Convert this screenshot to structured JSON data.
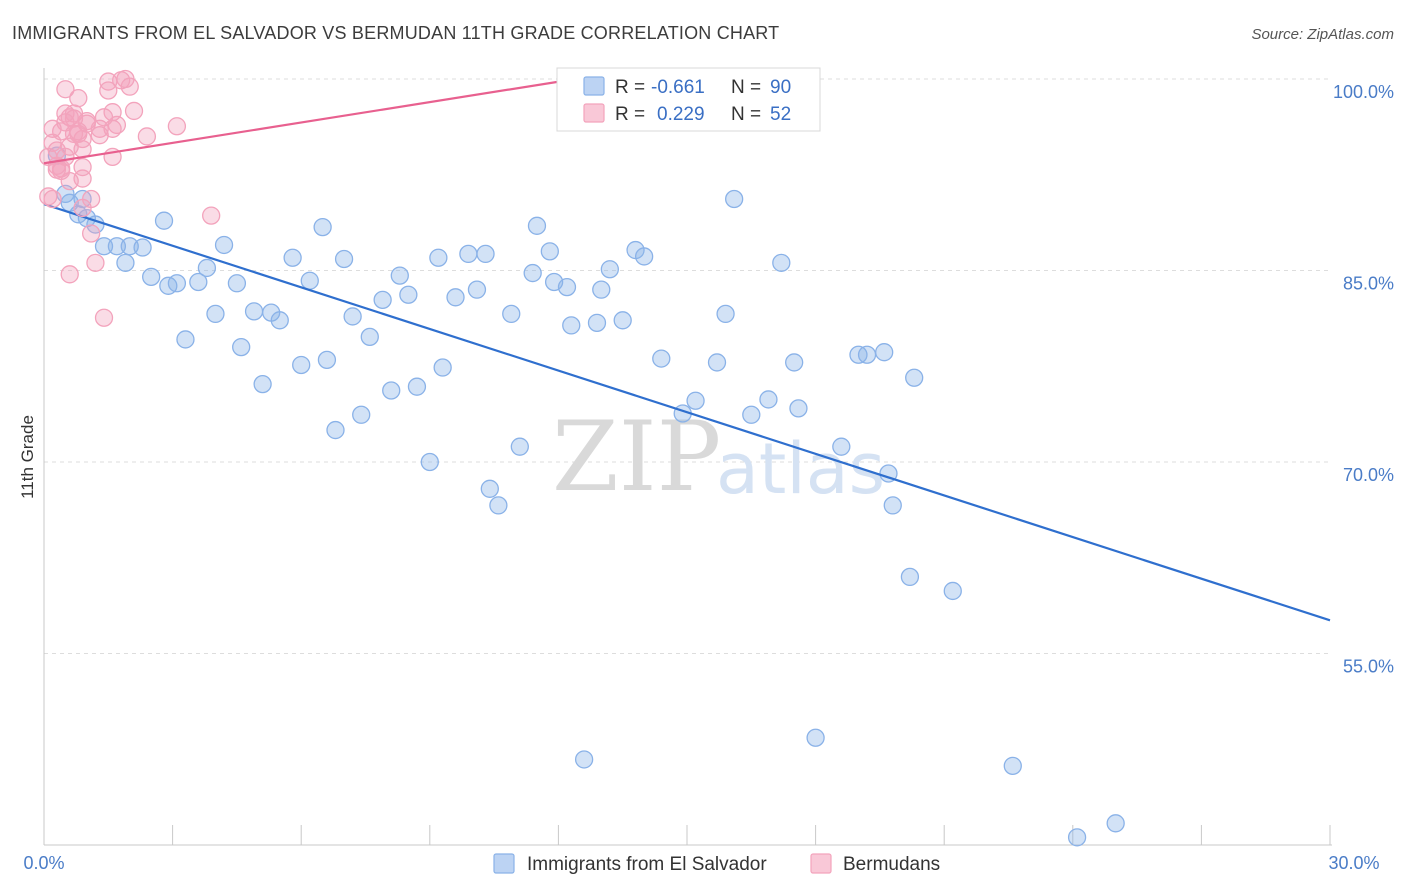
{
  "chart_data": {
    "type": "scatter",
    "title": "IMMIGRANTS FROM EL SALVADOR VS BERMUDAN 11TH GRADE CORRELATION CHART",
    "source": "Source: ZipAtlas.com",
    "ylabel": "11th Grade",
    "xlim": [
      0,
      30
    ],
    "ylim": [
      40,
      100
    ],
    "x_tick_labels": [
      "0.0%",
      "30.0%"
    ],
    "y_ticks": [
      100,
      85,
      70,
      55
    ],
    "y_tick_labels": [
      "100.0%",
      "85.0%",
      "70.0%",
      "55.0%"
    ],
    "watermark": {
      "zip": "ZIP",
      "atlas": "atlas"
    },
    "legend": {
      "rows": [
        {
          "r_label": "R =",
          "r_value": "-0.661",
          "n_label": "N =",
          "n_value": "90"
        },
        {
          "r_label": "R =",
          "r_value": "0.229",
          "n_label": "N =",
          "n_value": "52"
        }
      ]
    },
    "series": [
      {
        "name": "Immigrants from El Salvador",
        "color": "#8ab2e8",
        "line_color": "#2f6fce",
        "trend": {
          "x0": 0.0,
          "y0": 90.2,
          "x1": 30.0,
          "y1": 57.6
        },
        "points": [
          [
            0.5,
            91.0
          ],
          [
            0.6,
            90.3
          ],
          [
            0.8,
            89.4
          ],
          [
            1.0,
            89.1
          ],
          [
            1.2,
            88.6
          ],
          [
            1.4,
            86.9
          ],
          [
            1.7,
            86.9
          ],
          [
            1.9,
            85.6
          ],
          [
            2.0,
            86.9
          ],
          [
            2.3,
            86.8
          ],
          [
            2.5,
            84.5
          ],
          [
            2.8,
            88.9
          ],
          [
            2.9,
            83.8
          ],
          [
            3.1,
            84.0
          ],
          [
            3.3,
            79.6
          ],
          [
            3.6,
            84.1
          ],
          [
            3.8,
            85.2
          ],
          [
            4.0,
            81.6
          ],
          [
            4.2,
            87.0
          ],
          [
            4.5,
            84.0
          ],
          [
            4.6,
            79.0
          ],
          [
            4.9,
            81.8
          ],
          [
            5.1,
            76.1
          ],
          [
            5.3,
            81.7
          ],
          [
            5.5,
            81.1
          ],
          [
            5.8,
            86.0
          ],
          [
            6.0,
            77.6
          ],
          [
            6.2,
            84.2
          ],
          [
            6.5,
            88.4
          ],
          [
            6.6,
            78.0
          ],
          [
            6.8,
            72.5
          ],
          [
            7.0,
            85.9
          ],
          [
            7.2,
            81.4
          ],
          [
            7.4,
            73.7
          ],
          [
            7.6,
            79.8
          ],
          [
            7.9,
            82.7
          ],
          [
            8.1,
            75.6
          ],
          [
            8.3,
            84.6
          ],
          [
            8.5,
            83.1
          ],
          [
            8.7,
            75.9
          ],
          [
            9.0,
            70.0
          ],
          [
            9.2,
            86.0
          ],
          [
            9.3,
            77.4
          ],
          [
            9.6,
            82.9
          ],
          [
            9.9,
            86.3
          ],
          [
            10.1,
            83.5
          ],
          [
            10.3,
            86.3
          ],
          [
            10.4,
            67.9
          ],
          [
            10.6,
            66.6
          ],
          [
            10.9,
            81.6
          ],
          [
            11.1,
            71.2
          ],
          [
            11.4,
            84.8
          ],
          [
            11.5,
            88.5
          ],
          [
            11.8,
            86.5
          ],
          [
            11.9,
            84.1
          ],
          [
            12.2,
            83.7
          ],
          [
            12.3,
            80.7
          ],
          [
            12.6,
            46.7
          ],
          [
            12.9,
            80.9
          ],
          [
            13.0,
            83.5
          ],
          [
            13.2,
            85.1
          ],
          [
            13.5,
            81.1
          ],
          [
            13.8,
            86.6
          ],
          [
            14.0,
            86.1
          ],
          [
            14.4,
            78.1
          ],
          [
            14.9,
            73.8
          ],
          [
            15.2,
            74.8
          ],
          [
            15.7,
            77.8
          ],
          [
            15.9,
            81.6
          ],
          [
            16.1,
            90.6
          ],
          [
            16.5,
            73.7
          ],
          [
            16.9,
            74.9
          ],
          [
            17.2,
            85.6
          ],
          [
            17.5,
            77.8
          ],
          [
            17.6,
            74.2
          ],
          [
            18.0,
            48.4
          ],
          [
            18.6,
            71.2
          ],
          [
            19.0,
            78.4
          ],
          [
            19.2,
            78.4
          ],
          [
            19.6,
            78.6
          ],
          [
            19.7,
            69.1
          ],
          [
            19.8,
            66.6
          ],
          [
            20.2,
            61.0
          ],
          [
            20.3,
            76.6
          ],
          [
            21.2,
            59.9
          ],
          [
            22.6,
            46.2
          ],
          [
            24.1,
            40.6
          ],
          [
            25.0,
            41.7
          ],
          [
            0.3,
            94.0
          ],
          [
            0.9,
            90.6
          ]
        ]
      },
      {
        "name": "Bermudans",
        "color": "#f3a3bc",
        "line_color": "#e8608f",
        "trend": {
          "x0": 0.0,
          "y0": 93.4,
          "x1": 12.4,
          "y1": 100.0
        },
        "points": [
          [
            0.1,
            93.9
          ],
          [
            0.1,
            90.8
          ],
          [
            0.2,
            90.6
          ],
          [
            0.2,
            95.0
          ],
          [
            0.2,
            96.1
          ],
          [
            0.3,
            92.9
          ],
          [
            0.3,
            94.4
          ],
          [
            0.3,
            93.2
          ],
          [
            0.4,
            92.8
          ],
          [
            0.4,
            93.0
          ],
          [
            0.4,
            95.9
          ],
          [
            0.5,
            96.6
          ],
          [
            0.5,
            93.9
          ],
          [
            0.5,
            97.3
          ],
          [
            0.5,
            99.2
          ],
          [
            0.6,
            97.0
          ],
          [
            0.6,
            94.7
          ],
          [
            0.6,
            92.0
          ],
          [
            0.6,
            84.7
          ],
          [
            0.7,
            96.9
          ],
          [
            0.7,
            97.3
          ],
          [
            0.7,
            95.7
          ],
          [
            0.8,
            95.9
          ],
          [
            0.8,
            98.5
          ],
          [
            0.8,
            95.7
          ],
          [
            0.9,
            95.3
          ],
          [
            0.9,
            93.1
          ],
          [
            0.9,
            94.5
          ],
          [
            0.9,
            89.9
          ],
          [
            0.9,
            92.2
          ],
          [
            1.0,
            96.7
          ],
          [
            1.0,
            96.5
          ],
          [
            1.1,
            87.9
          ],
          [
            1.1,
            90.6
          ],
          [
            1.2,
            85.6
          ],
          [
            1.3,
            95.6
          ],
          [
            1.3,
            96.1
          ],
          [
            1.4,
            97.0
          ],
          [
            1.4,
            81.3
          ],
          [
            1.5,
            99.1
          ],
          [
            1.5,
            99.8
          ],
          [
            1.6,
            97.4
          ],
          [
            1.6,
            96.1
          ],
          [
            1.6,
            93.9
          ],
          [
            1.7,
            96.4
          ],
          [
            1.8,
            99.9
          ],
          [
            1.9,
            100.0
          ],
          [
            2.0,
            99.4
          ],
          [
            2.1,
            97.5
          ],
          [
            2.4,
            95.5
          ],
          [
            3.1,
            96.3
          ],
          [
            3.9,
            89.3
          ]
        ]
      }
    ]
  }
}
